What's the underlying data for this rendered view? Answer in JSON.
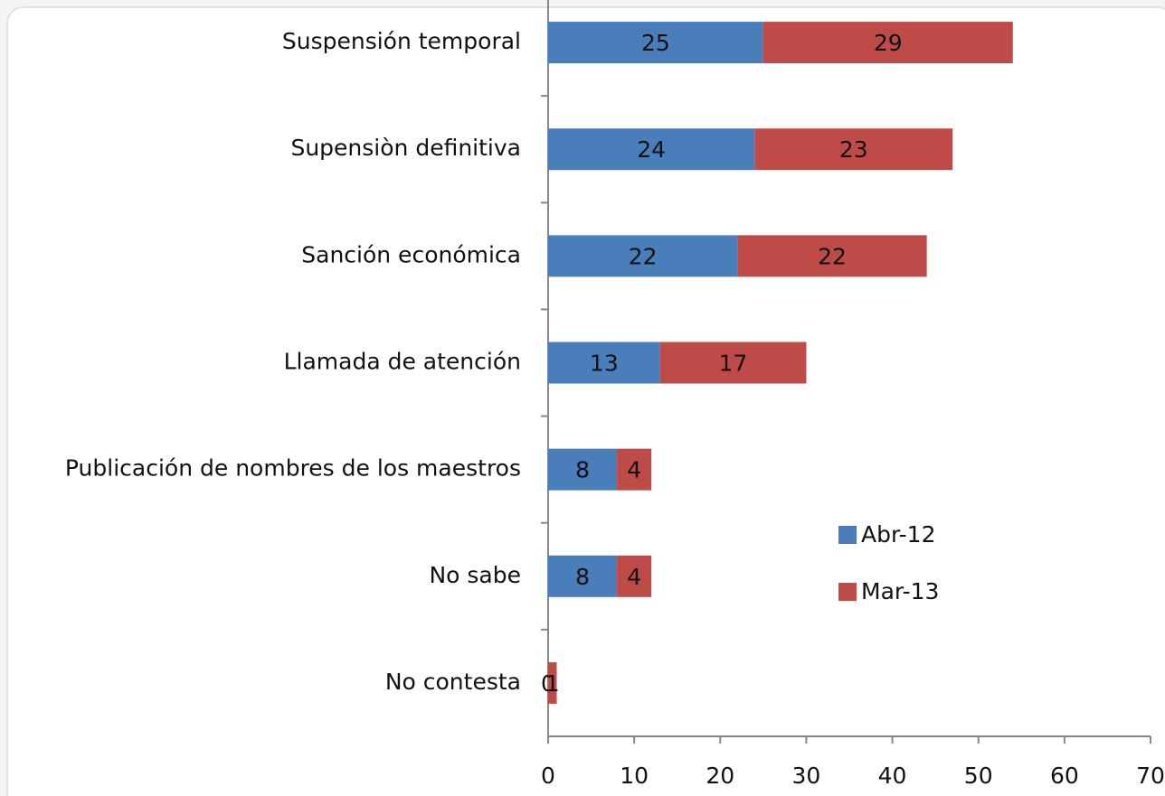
{
  "chart_data": {
    "type": "stacked-bar-horizontal",
    "categories": [
      "Suspensión temporal",
      "Supensiòn definitiva",
      "Sanción económica",
      "Llamada de atención",
      "Publicación de nombres de los maestros",
      "No sabe",
      "No contesta"
    ],
    "series": [
      {
        "name": "Abr-12",
        "color": "#4a7ebb",
        "values": [
          25,
          24,
          22,
          13,
          8,
          8,
          0
        ]
      },
      {
        "name": "Mar-13",
        "color": "#be4b48",
        "values": [
          29,
          23,
          22,
          17,
          4,
          4,
          1
        ]
      }
    ],
    "xlim": [
      0,
      70
    ],
    "xticks": [
      0,
      10,
      20,
      30,
      40,
      50,
      60,
      70
    ],
    "legend": "right"
  }
}
